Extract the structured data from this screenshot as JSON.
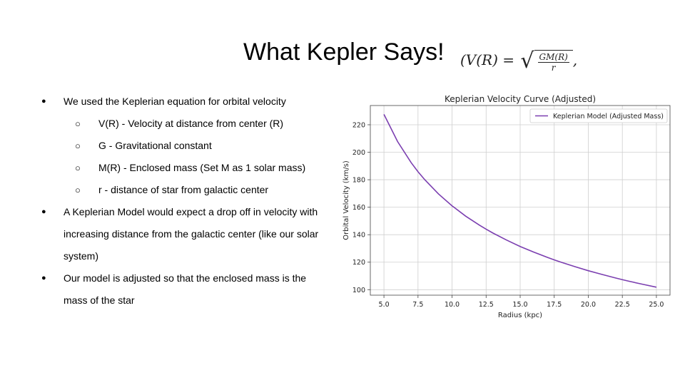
{
  "slide": {
    "title": "What Kepler Says!",
    "formula": {
      "lhs": "(V(R) =",
      "numerator": "GM(R)",
      "denominator": "r",
      "trail": ","
    }
  },
  "bullets": [
    {
      "level": 1,
      "text": "We used the Keplerian equation for orbital velocity"
    },
    {
      "level": 2,
      "text": "V(R) - Velocity at distance from center (R)"
    },
    {
      "level": 2,
      "text": "G - Gravitational constant"
    },
    {
      "level": 2,
      "text": "M(R) - Enclosed mass (Set M as 1 solar mass)"
    },
    {
      "level": 2,
      "text": "r - distance of star from galactic center"
    },
    {
      "level": 1,
      "text": "A Keplerian Model would expect a drop off in velocity with"
    },
    {
      "level": 1,
      "text": "increasing distance from the galactic center (like our solar",
      "continuation": true
    },
    {
      "level": 1,
      "text": "system)",
      "continuation": true
    },
    {
      "level": 1,
      "text": "Our model is adjusted so that the enclosed mass is the"
    },
    {
      "level": 1,
      "text": "mass of the star",
      "continuation": true
    }
  ],
  "chart_data": {
    "type": "line",
    "title": "Keplerian Velocity Curve (Adjusted)",
    "xlabel": "Radius (kpc)",
    "ylabel": "Orbital Velocity (km/s)",
    "xlim": [
      4.0,
      26.0
    ],
    "ylim": [
      96,
      234
    ],
    "xticks": [
      5.0,
      7.5,
      10.0,
      12.5,
      15.0,
      17.5,
      20.0,
      22.5,
      25.0
    ],
    "xtick_labels": [
      "5.0",
      "7.5",
      "10.0",
      "12.5",
      "15.0",
      "17.5",
      "20.0",
      "22.5",
      "25.0"
    ],
    "yticks": [
      100,
      120,
      140,
      160,
      180,
      200,
      220
    ],
    "ytick_labels": [
      "100",
      "120",
      "140",
      "160",
      "180",
      "200",
      "220"
    ],
    "grid": true,
    "legend_position": "top-right",
    "series": [
      {
        "name": "Keplerian Model (Adjusted Mass)",
        "color": "#7b3fb0",
        "x": [
          5.0,
          6.0,
          7.0,
          7.5,
          8.0,
          9.0,
          10.0,
          11.0,
          12.0,
          12.5,
          13.0,
          14.0,
          15.0,
          16.0,
          17.0,
          17.5,
          18.0,
          19.0,
          20.0,
          21.0,
          22.0,
          22.5,
          23.0,
          24.0,
          25.0
        ],
        "y": [
          227.6,
          207.8,
          192.4,
          185.8,
          180.0,
          169.7,
          161.0,
          153.5,
          147.0,
          144.0,
          141.2,
          136.1,
          131.4,
          127.3,
          123.5,
          121.7,
          120.0,
          116.8,
          113.8,
          111.1,
          108.5,
          107.3,
          106.1,
          103.9,
          101.8
        ]
      }
    ]
  }
}
